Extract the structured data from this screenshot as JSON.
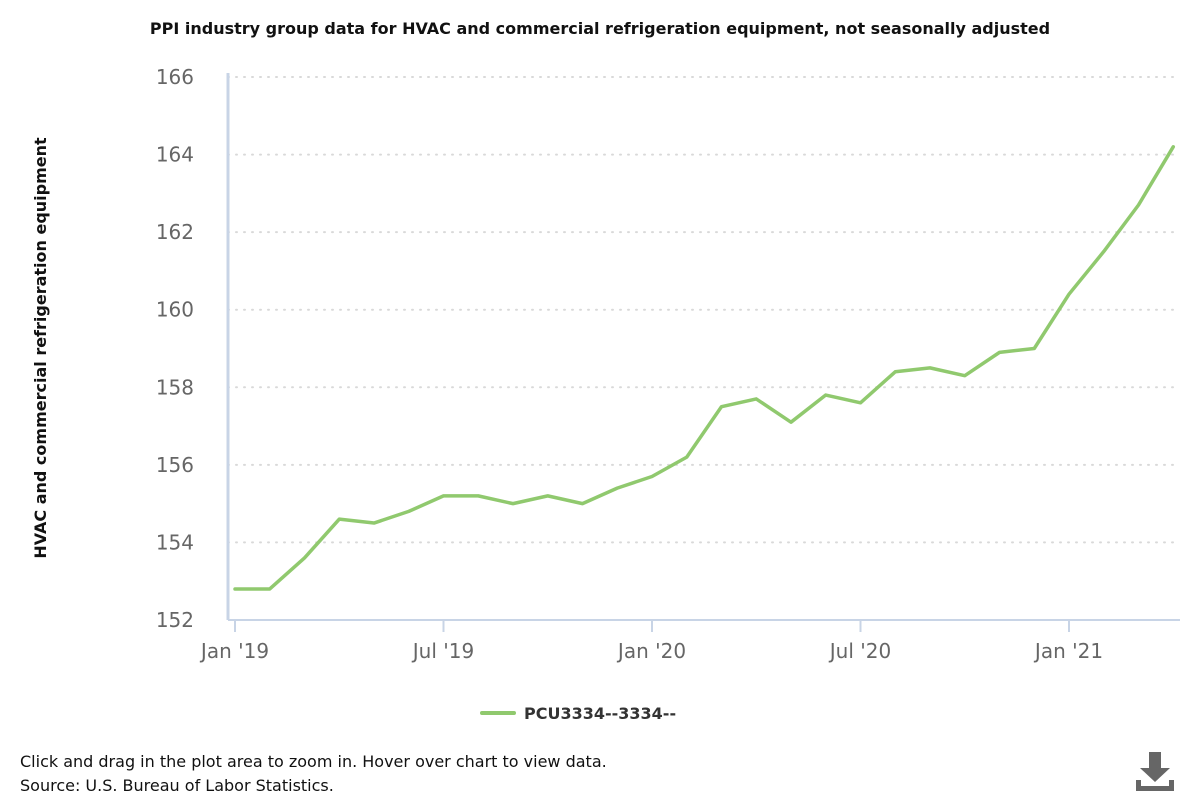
{
  "chart_data": {
    "type": "line",
    "title": "PPI industry group data for HVAC and commercial refrigeration equipment, not seasonally adjusted",
    "ylabel": "HVAC and commercial refrigeration equipment",
    "xlabel": "",
    "ylim": [
      152,
      166
    ],
    "yticks": [
      152,
      154,
      156,
      158,
      160,
      162,
      164,
      166
    ],
    "xticks": [
      {
        "label": "Jan '19",
        "index": 0
      },
      {
        "label": "Jul '19",
        "index": 6
      },
      {
        "label": "Jan '20",
        "index": 12
      },
      {
        "label": "Jul '20",
        "index": 18
      },
      {
        "label": "Jan '21",
        "index": 24
      }
    ],
    "grid": true,
    "legend": "bottom-center",
    "x": [
      "Jan 2019",
      "Feb 2019",
      "Mar 2019",
      "Apr 2019",
      "May 2019",
      "Jun 2019",
      "Jul 2019",
      "Aug 2019",
      "Sep 2019",
      "Oct 2019",
      "Nov 2019",
      "Dec 2019",
      "Jan 2020",
      "Feb 2020",
      "Mar 2020",
      "Apr 2020",
      "May 2020",
      "Jun 2020",
      "Jul 2020",
      "Aug 2020",
      "Sep 2020",
      "Oct 2020",
      "Nov 2020",
      "Dec 2020",
      "Jan 2021",
      "Feb 2021",
      "Mar 2021",
      "Apr 2021"
    ],
    "series": [
      {
        "name": "PCU3334--3334--",
        "color": "#90c96e",
        "values": [
          152.8,
          152.8,
          153.6,
          154.6,
          154.5,
          154.8,
          155.2,
          155.2,
          155.0,
          155.2,
          155.0,
          155.4,
          155.7,
          156.2,
          157.5,
          157.7,
          157.1,
          157.8,
          157.6,
          158.4,
          158.5,
          158.3,
          158.9,
          159.0,
          160.4,
          161.5,
          162.7,
          164.2
        ]
      }
    ]
  },
  "footer": {
    "instruction": "Click and drag in the plot area to zoom in. Hover over chart to view data.",
    "source": "Source: U.S. Bureau of Labor Statistics."
  },
  "colors": {
    "axis": "#c8d4e6",
    "grid": "#d9d9d9",
    "tick_text": "#666666",
    "download_icon": "#666666"
  },
  "icons": {
    "download": "download-icon"
  }
}
